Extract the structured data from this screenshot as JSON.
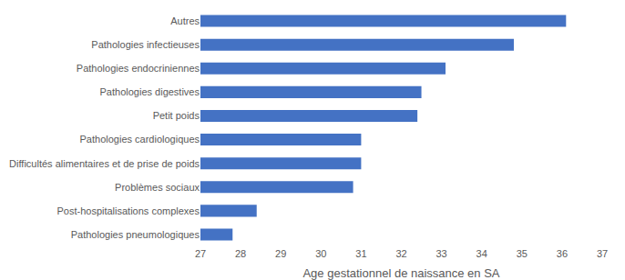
{
  "chart_data": {
    "type": "bar",
    "orientation": "horizontal",
    "x_label": "Age gestationnel de naissance en SA",
    "categories": [
      "Autres",
      "Pathologies infectieuses",
      "Pathologies endocriniennes",
      "Pathologies digestives",
      "Petit poids",
      "Pathologies cardiologiques",
      "Difficultés alimentaires et de prise de poids",
      "Problèmes sociaux",
      "Post-hospitalisations complexes",
      "Pathologies pneumologiques"
    ],
    "values": [
      36.1,
      34.8,
      33.1,
      32.5,
      32.4,
      31.0,
      31.0,
      30.8,
      28.4,
      27.8
    ],
    "color": "#4472c4",
    "xlim": [
      27,
      37
    ],
    "xticks": [
      27,
      28,
      29,
      30,
      31,
      32,
      33,
      34,
      35,
      36,
      37
    ],
    "grid": false
  }
}
